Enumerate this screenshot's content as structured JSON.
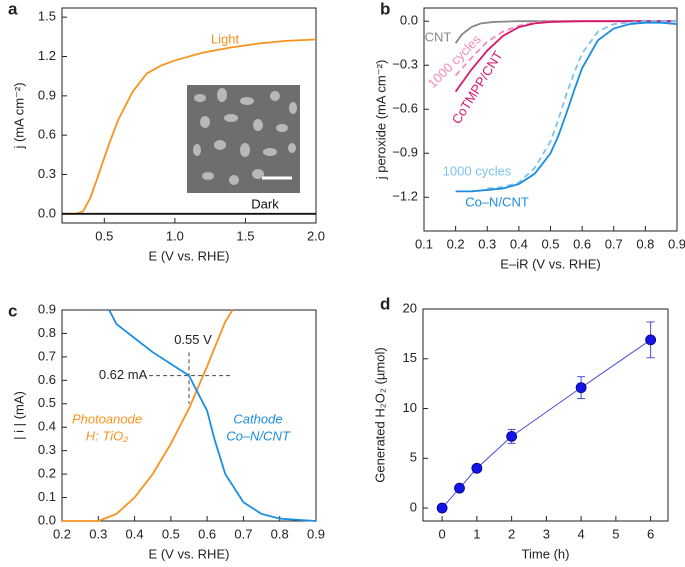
{
  "chart_data": [
    {
      "type": "line",
      "panel_label": "a",
      "x_label": "E (V vs. RHE)",
      "y_label": "j (mA cm⁻²)",
      "xlim": [
        0.2,
        2.0
      ],
      "ylim": [
        -0.07,
        1.57
      ],
      "xticks": [
        0.5,
        {
          "value": 1.0,
          "label": "1.0"
        },
        1.5,
        {
          "value": 2.0,
          "label": "2.0"
        }
      ],
      "yticks": [
        {
          "value": 0,
          "label": "0.0"
        },
        0.3,
        0.6,
        0.9,
        1.2,
        1.5
      ],
      "series": [
        {
          "name": "Light",
          "color": "#f7931e",
          "x": [
            0.2,
            0.3,
            0.35,
            0.4,
            0.45,
            0.5,
            0.55,
            0.6,
            0.7,
            0.8,
            0.9,
            1.0,
            1.2,
            1.4,
            1.6,
            1.8,
            2.0
          ],
          "values": [
            0,
            0,
            0.02,
            0.12,
            0.27,
            0.43,
            0.58,
            0.72,
            0.93,
            1.07,
            1.13,
            1.17,
            1.23,
            1.27,
            1.3,
            1.32,
            1.33
          ]
        },
        {
          "name": "Dark",
          "color": "#111111",
          "x": [
            0.2,
            2.0
          ],
          "values": [
            0,
            0
          ]
        }
      ]
    },
    {
      "type": "line",
      "panel_label": "b",
      "x_label": "E–iR (V vs. RHE)",
      "y_label": "j peroxide (mA cm⁻²)",
      "xlim": [
        0.1,
        0.9
      ],
      "ylim": [
        -1.43,
        0.09
      ],
      "xticks": [
        0.1,
        0.2,
        0.3,
        0.4,
        0.5,
        0.6,
        0.7,
        0.8,
        0.9
      ],
      "yticks": [
        {
          "value": 0,
          "label": "0.0"
        },
        {
          "value": -0.3,
          "label": "−0.3"
        },
        {
          "value": -0.6,
          "label": "−0.6"
        },
        {
          "value": -0.9,
          "label": "−0.9"
        },
        {
          "value": -1.2,
          "label": "−1.2"
        }
      ],
      "series": [
        {
          "name": "CNT",
          "color": "#888888",
          "x": [
            0.2,
            0.22,
            0.25,
            0.28,
            0.32,
            0.4,
            0.5,
            0.7,
            0.9
          ],
          "values": [
            -0.15,
            -0.09,
            -0.04,
            -0.015,
            -0.005,
            0,
            0,
            0,
            0
          ]
        },
        {
          "name": "1000 cycles",
          "color": "#f08cb8",
          "dashed": true,
          "x": [
            0.2,
            0.25,
            0.3,
            0.35,
            0.4,
            0.45,
            0.5,
            0.6,
            0.9
          ],
          "values": [
            -0.37,
            -0.25,
            -0.14,
            -0.07,
            -0.03,
            -0.01,
            0,
            0,
            0
          ]
        },
        {
          "name": "CoTMPP/CNT",
          "color": "#d6186f",
          "x": [
            0.2,
            0.25,
            0.3,
            0.35,
            0.4,
            0.45,
            0.5,
            0.6,
            0.9
          ],
          "values": [
            -0.48,
            -0.33,
            -0.2,
            -0.1,
            -0.04,
            -0.015,
            -0.005,
            0,
            0
          ]
        },
        {
          "name": "1000 cycles",
          "color": "#7ec3ef",
          "dashed": true,
          "x": [
            0.3,
            0.35,
            0.4,
            0.45,
            0.5,
            0.525,
            0.55,
            0.575,
            0.6,
            0.65,
            0.7,
            0.75,
            0.8,
            0.9
          ],
          "values": [
            -1.14,
            -1.13,
            -1.1,
            -1.0,
            -0.82,
            -0.67,
            -0.5,
            -0.35,
            -0.22,
            -0.07,
            -0.02,
            -0.01,
            0,
            0
          ]
        },
        {
          "name": "Co–N/CNT",
          "color": "#1b8ee0",
          "x": [
            0.2,
            0.25,
            0.3,
            0.35,
            0.4,
            0.45,
            0.5,
            0.525,
            0.55,
            0.575,
            0.6,
            0.65,
            0.7,
            0.75,
            0.8,
            0.85,
            0.9
          ],
          "values": [
            -1.16,
            -1.16,
            -1.15,
            -1.14,
            -1.11,
            -1.04,
            -0.9,
            -0.78,
            -0.63,
            -0.47,
            -0.32,
            -0.13,
            -0.05,
            -0.02,
            -0.01,
            -0.01,
            -0.02
          ]
        }
      ]
    },
    {
      "type": "line",
      "panel_label": "c",
      "x_label": "E (V vs. RHE)",
      "y_label": "| i | (mA)",
      "xlim": [
        0.2,
        0.9
      ],
      "ylim": [
        0,
        0.9
      ],
      "xticks": [
        0.2,
        0.3,
        0.4,
        0.5,
        0.6,
        0.7,
        0.8,
        0.9
      ],
      "yticks": [
        {
          "value": 0,
          "label": "0.0"
        },
        0.1,
        0.2,
        0.3,
        0.4,
        0.5,
        0.6,
        0.7,
        0.8,
        0.9
      ],
      "crosshair": {
        "x": 0.55,
        "y": 0.62,
        "x_label": "0.55 V",
        "y_label": "0.62 mA"
      },
      "series": [
        {
          "name": "Photoanode",
          "sublabel": "H: TiO₂",
          "color": "#f7931e",
          "x": [
            0.2,
            0.3,
            0.35,
            0.4,
            0.45,
            0.5,
            0.55,
            0.6,
            0.65,
            0.67
          ],
          "values": [
            0,
            0,
            0.03,
            0.1,
            0.2,
            0.33,
            0.48,
            0.66,
            0.85,
            0.9
          ]
        },
        {
          "name": "Cathode",
          "sublabel": "Co–N/CNT",
          "color": "#1b8ee0",
          "x": [
            0.33,
            0.35,
            0.4,
            0.45,
            0.5,
            0.55,
            0.6,
            0.62,
            0.65,
            0.7,
            0.75,
            0.8,
            0.9
          ],
          "values": [
            0.9,
            0.84,
            0.78,
            0.72,
            0.67,
            0.62,
            0.47,
            0.35,
            0.2,
            0.08,
            0.03,
            0.01,
            0
          ]
        }
      ]
    },
    {
      "type": "errorbar",
      "panel_label": "d",
      "x_label": "Time (h)",
      "y_label": "Generated H₂O₂ (µmol)",
      "xlim": [
        -0.55,
        6.5
      ],
      "ylim": [
        -1.3,
        20
      ],
      "xticks": [
        0,
        1,
        2,
        3,
        4,
        5,
        6
      ],
      "yticks": [
        0,
        5,
        10,
        15,
        20
      ],
      "series": [
        {
          "color": "#1414e6",
          "x": [
            0,
            0.5,
            1,
            2,
            4,
            6
          ],
          "values": [
            0,
            2.0,
            4.0,
            7.2,
            12.1,
            16.9
          ],
          "errors": [
            0.1,
            0.2,
            0.3,
            0.7,
            1.1,
            1.8
          ]
        }
      ]
    }
  ]
}
